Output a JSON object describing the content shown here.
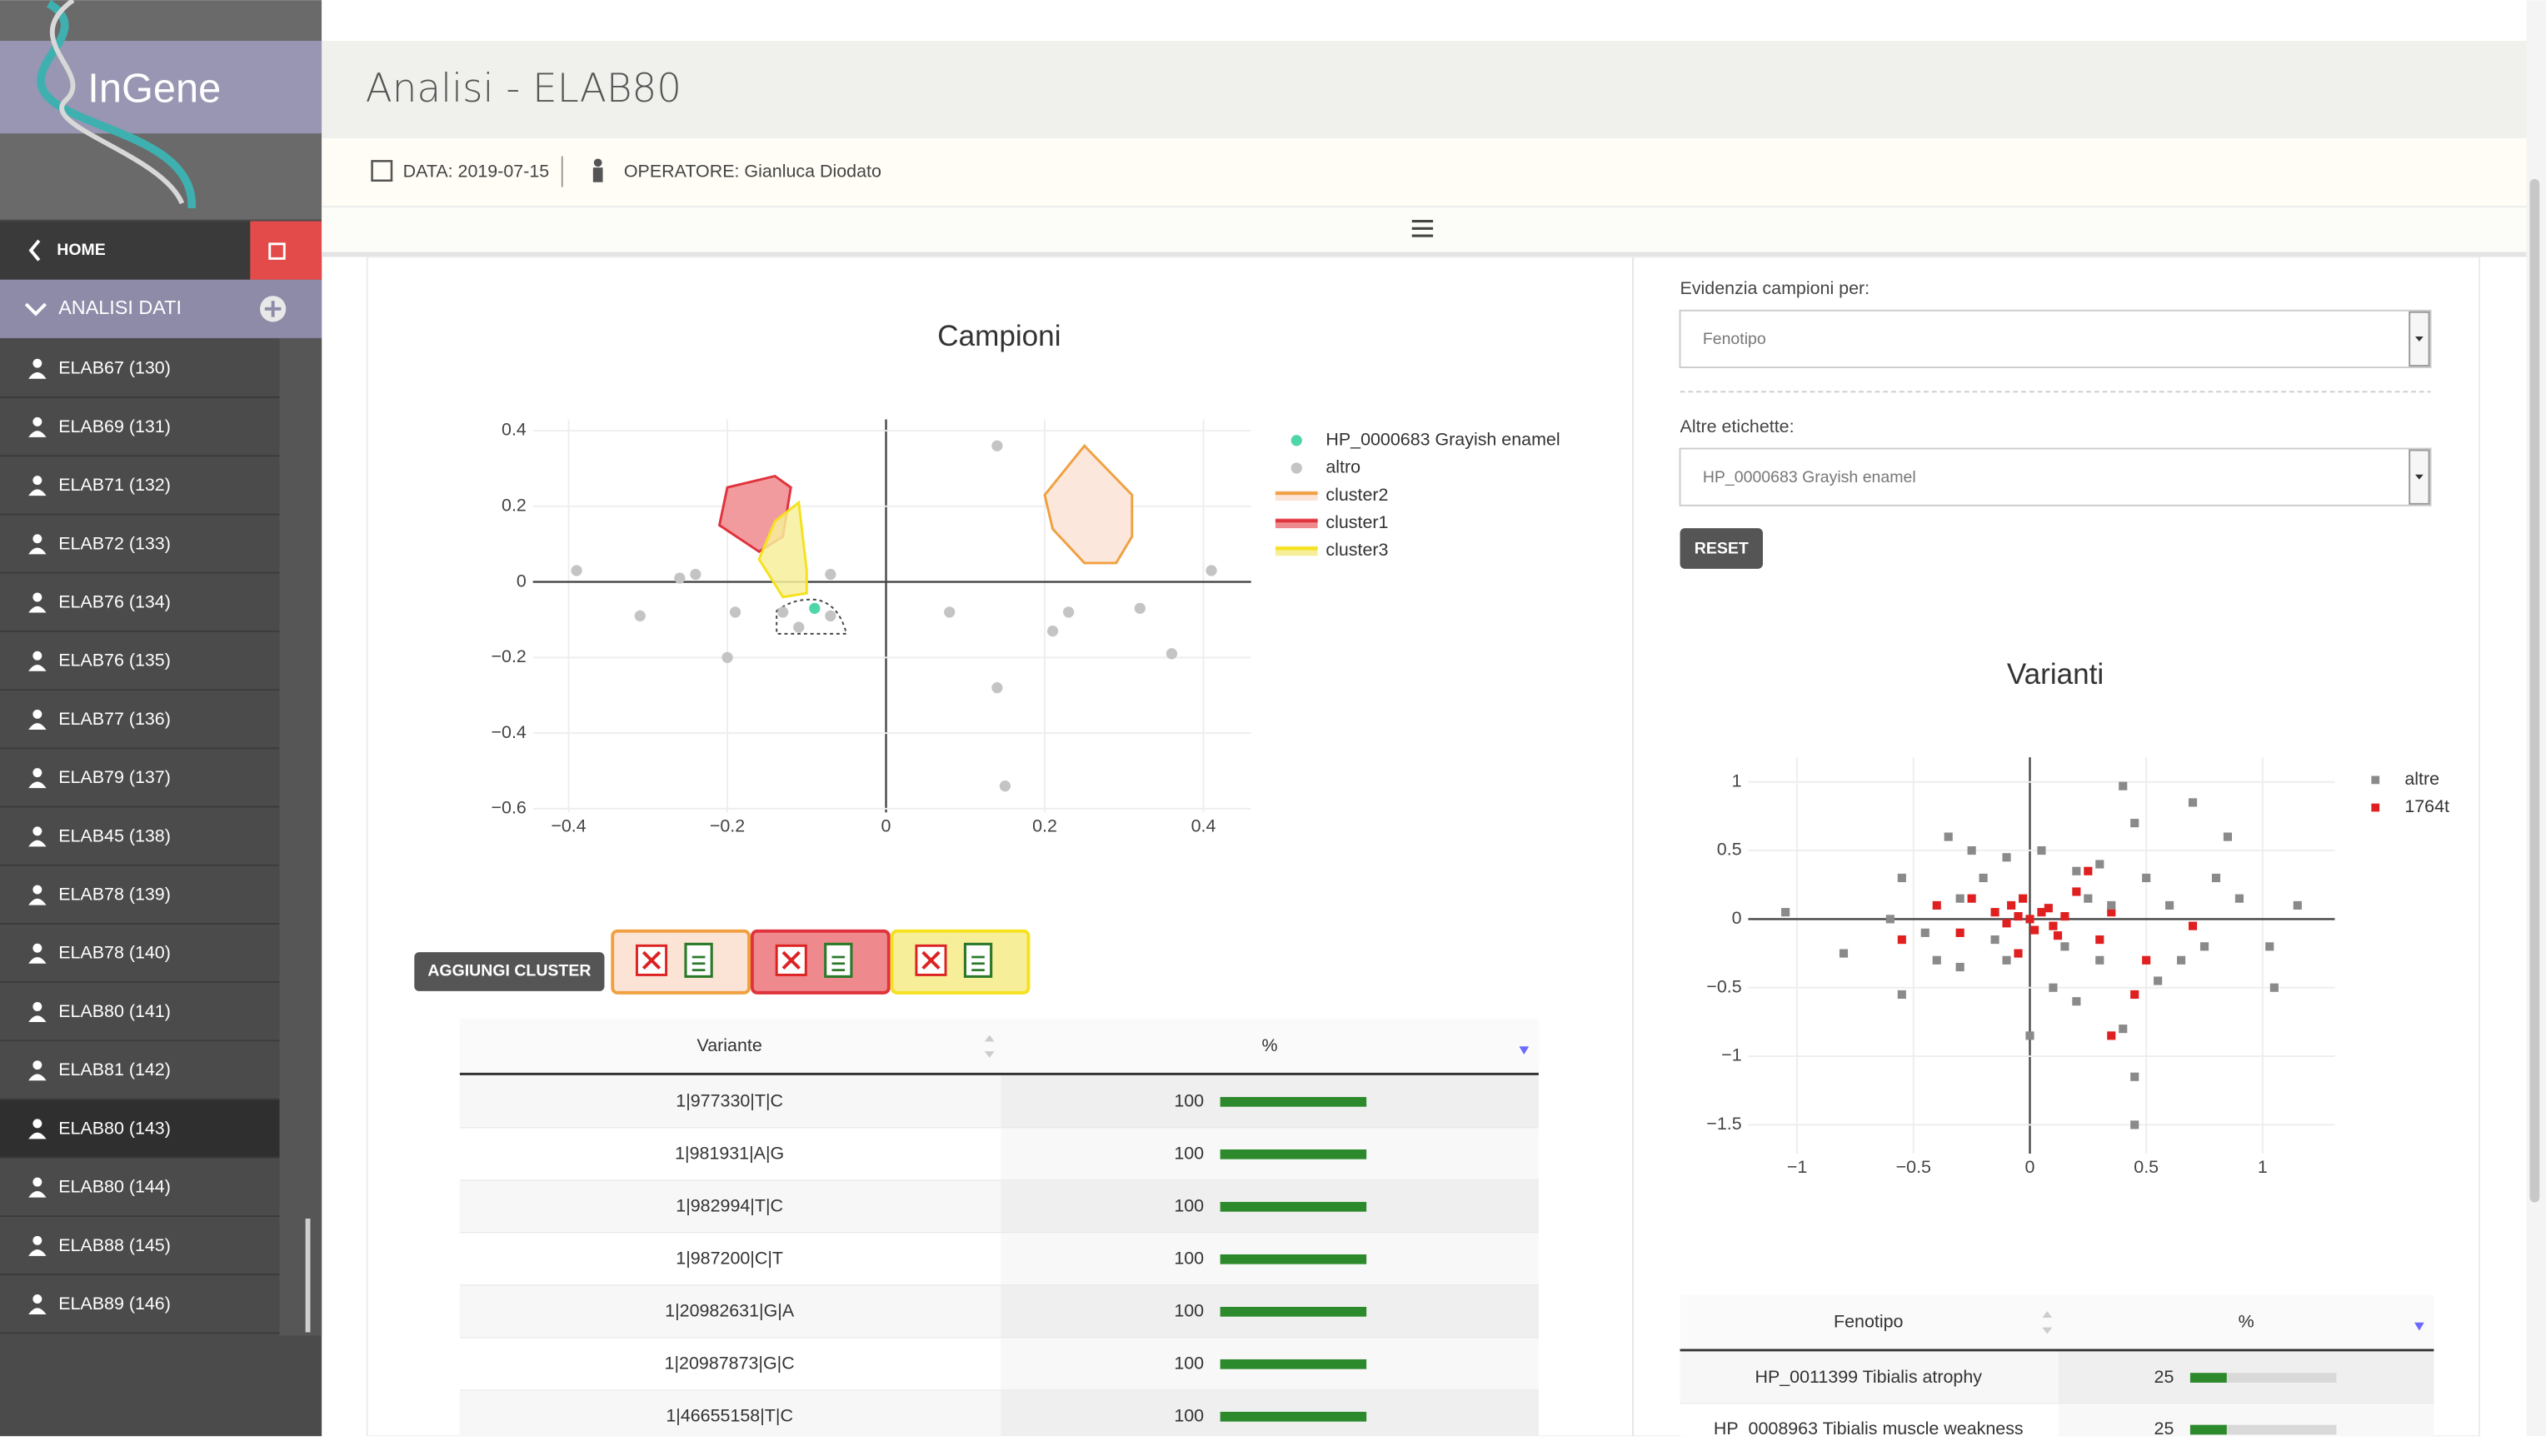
{
  "sidebar": {
    "brand": "InGene",
    "home": "HOME",
    "section": "ANALISI DATI",
    "items": [
      "ELAB67 (130)",
      "ELAB69 (131)",
      "ELAB71 (132)",
      "ELAB72 (133)",
      "ELAB76 (134)",
      "ELAB76 (135)",
      "ELAB77 (136)",
      "ELAB79 (137)",
      "ELAB45 (138)",
      "ELAB78 (139)",
      "ELAB78 (140)",
      "ELAB80 (141)",
      "ELAB81 (142)",
      "ELAB80 (143)",
      "ELAB80 (144)",
      "ELAB88 (145)",
      "ELAB89 (146)"
    ]
  },
  "header": {
    "title": "Analisi - ELAB80",
    "date": "DATA: 2019-07-15",
    "operator": "OPERATORE: Gianluca Diodato"
  },
  "controls": {
    "highlight_label": "Evidenzia campioni per:",
    "highlight_value": "Fenotipo",
    "labels_label": "Altre etichette:",
    "labels_value": "HP_0000683 Grayish enamel",
    "reset": "RESET",
    "add_cluster": "AGGIUNGI CLUSTER"
  },
  "chart_data": [
    {
      "type": "scatter",
      "title": "Campioni",
      "xlim": [
        -0.445,
        0.46
      ],
      "ylim": [
        -0.61,
        0.43
      ],
      "xticks": [
        {
          "value": -0.4,
          "label": "−0.4"
        },
        {
          "value": -0.2,
          "label": "−0.2"
        },
        0,
        0.2,
        0.4
      ],
      "yticks": [
        {
          "value": -0.6,
          "label": "−0.6"
        },
        {
          "value": -0.4,
          "label": "−0.4"
        },
        {
          "value": -0.2,
          "label": "−0.2"
        },
        0,
        0.2,
        0.4
      ],
      "grid": true,
      "marker": "circle",
      "series": [
        {
          "name": "HP_0000683 Grayish enamel",
          "color": "#4fd6a8",
          "x": [
            -0.09
          ],
          "y": [
            -0.07
          ]
        },
        {
          "name": "altro",
          "color": "#c4c4c4",
          "x": [
            -0.39,
            -0.31,
            -0.26,
            -0.24,
            -0.2,
            -0.19,
            -0.07,
            0.08,
            0.14,
            0.14,
            0.15,
            0.21,
            0.23,
            0.32,
            0.36,
            0.41,
            -0.11,
            -0.13,
            -0.07
          ],
          "y": [
            0.03,
            -0.09,
            0.01,
            0.02,
            -0.2,
            -0.08,
            0.02,
            -0.08,
            0.36,
            -0.28,
            -0.54,
            -0.13,
            -0.08,
            -0.07,
            -0.19,
            0.03,
            -0.12,
            -0.08,
            -0.09
          ]
        }
      ],
      "clusters": [
        {
          "name": "cluster2",
          "color": "#f0a040",
          "fill": "#fbe3d6",
          "x": [
            0.25,
            0.31,
            0.31,
            0.29,
            0.25,
            0.21,
            0.2
          ],
          "y": [
            0.36,
            0.23,
            0.12,
            0.05,
            0.05,
            0.14,
            0.23
          ]
        },
        {
          "name": "cluster1",
          "color": "#e0333c",
          "fill": "#ee8a8e",
          "x": [
            -0.2,
            -0.14,
            -0.12,
            -0.13,
            -0.16,
            -0.21
          ],
          "y": [
            0.25,
            0.28,
            0.25,
            0.12,
            0.08,
            0.15
          ]
        },
        {
          "name": "cluster3",
          "color": "#f5e11e",
          "fill": "#f7ee9a",
          "x": [
            -0.11,
            -0.1,
            -0.1,
            -0.13,
            -0.16,
            -0.14
          ],
          "y": [
            0.21,
            0.03,
            -0.03,
            -0.04,
            0.06,
            0.16
          ]
        }
      ]
    },
    {
      "type": "scatter",
      "title": "Varianti",
      "xlim": [
        -1.21,
        1.31
      ],
      "ylim": [
        -1.71,
        1.18
      ],
      "xticks": [
        {
          "value": -1,
          "label": "−1"
        },
        {
          "value": -0.5,
          "label": "−0.5"
        },
        0,
        0.5,
        1
      ],
      "yticks": [
        {
          "value": -1.5,
          "label": "−1.5"
        },
        {
          "value": -1,
          "label": "−1"
        },
        {
          "value": -0.5,
          "label": "−0.5"
        },
        0,
        0.5,
        1
      ],
      "grid": true,
      "marker": "square",
      "series": [
        {
          "name": "altre",
          "color": "#8a8a8a",
          "x": [
            0.4,
            0.7,
            0.85,
            -0.35,
            -1.05,
            -0.8,
            -0.55,
            1.15,
            1.03,
            1.05,
            0.45,
            0.45,
            0.4,
            0.55,
            0.2,
            0.3,
            -0.2,
            -0.3,
            -0.45,
            -0.6,
            -0.3,
            0.1,
            0.0,
            -0.1,
            0.35,
            0.5,
            0.6,
            0.75,
            0.8,
            0.3,
            0.15,
            -0.15,
            0.05,
            0.45,
            -0.1,
            -0.55,
            0.65,
            0.2,
            -0.4,
            0.25,
            -0.25,
            0.9
          ],
          "y": [
            0.97,
            0.85,
            0.6,
            0.6,
            0.05,
            -0.25,
            -0.55,
            0.1,
            -0.2,
            -0.5,
            -1.15,
            -1.5,
            -0.8,
            -0.45,
            0.35,
            0.4,
            0.3,
            0.15,
            -0.1,
            0.0,
            -0.35,
            -0.5,
            -0.85,
            -0.3,
            0.1,
            0.3,
            0.1,
            -0.2,
            0.3,
            -0.3,
            -0.2,
            -0.15,
            0.5,
            0.7,
            0.45,
            0.3,
            -0.3,
            -0.6,
            -0.3,
            0.15,
            0.5,
            0.15
          ]
        },
        {
          "name": "1764t",
          "color": "#e02020",
          "x": [
            0,
            0.05,
            -0.05,
            0.1,
            -0.1,
            0.02,
            0.08,
            -0.08,
            0.15,
            -0.15,
            0.12,
            -0.03,
            0.2,
            -0.25,
            -0.3,
            0.35,
            0.3,
            -0.55,
            0.45,
            0.35,
            0.7,
            -0.05,
            0.25,
            -0.4,
            0.5
          ],
          "y": [
            0,
            0.05,
            0.02,
            -0.05,
            -0.03,
            -0.08,
            0.08,
            0.1,
            0.02,
            0.05,
            -0.12,
            0.15,
            0.2,
            0.15,
            -0.1,
            0.05,
            -0.15,
            -0.15,
            -0.55,
            -0.85,
            -0.05,
            -0.25,
            0.35,
            0.1,
            -0.3
          ]
        }
      ]
    }
  ],
  "variant_table": {
    "columns": [
      "Variante",
      "%"
    ],
    "rows": [
      [
        "1|977330|T|C",
        100
      ],
      [
        "1|981931|A|G",
        100
      ],
      [
        "1|982994|T|C",
        100
      ],
      [
        "1|987200|C|T",
        100
      ],
      [
        "1|20982631|G|A",
        100
      ],
      [
        "1|20987873|G|C",
        100
      ],
      [
        "1|46655158|T|C",
        100
      ]
    ]
  },
  "phenotype_table": {
    "columns": [
      "Fenotipo",
      "%"
    ],
    "rows": [
      [
        "HP_0011399 Tibialis atrophy",
        25
      ],
      [
        "HP_0008963 Tibialis muscle weakness",
        25
      ]
    ]
  }
}
